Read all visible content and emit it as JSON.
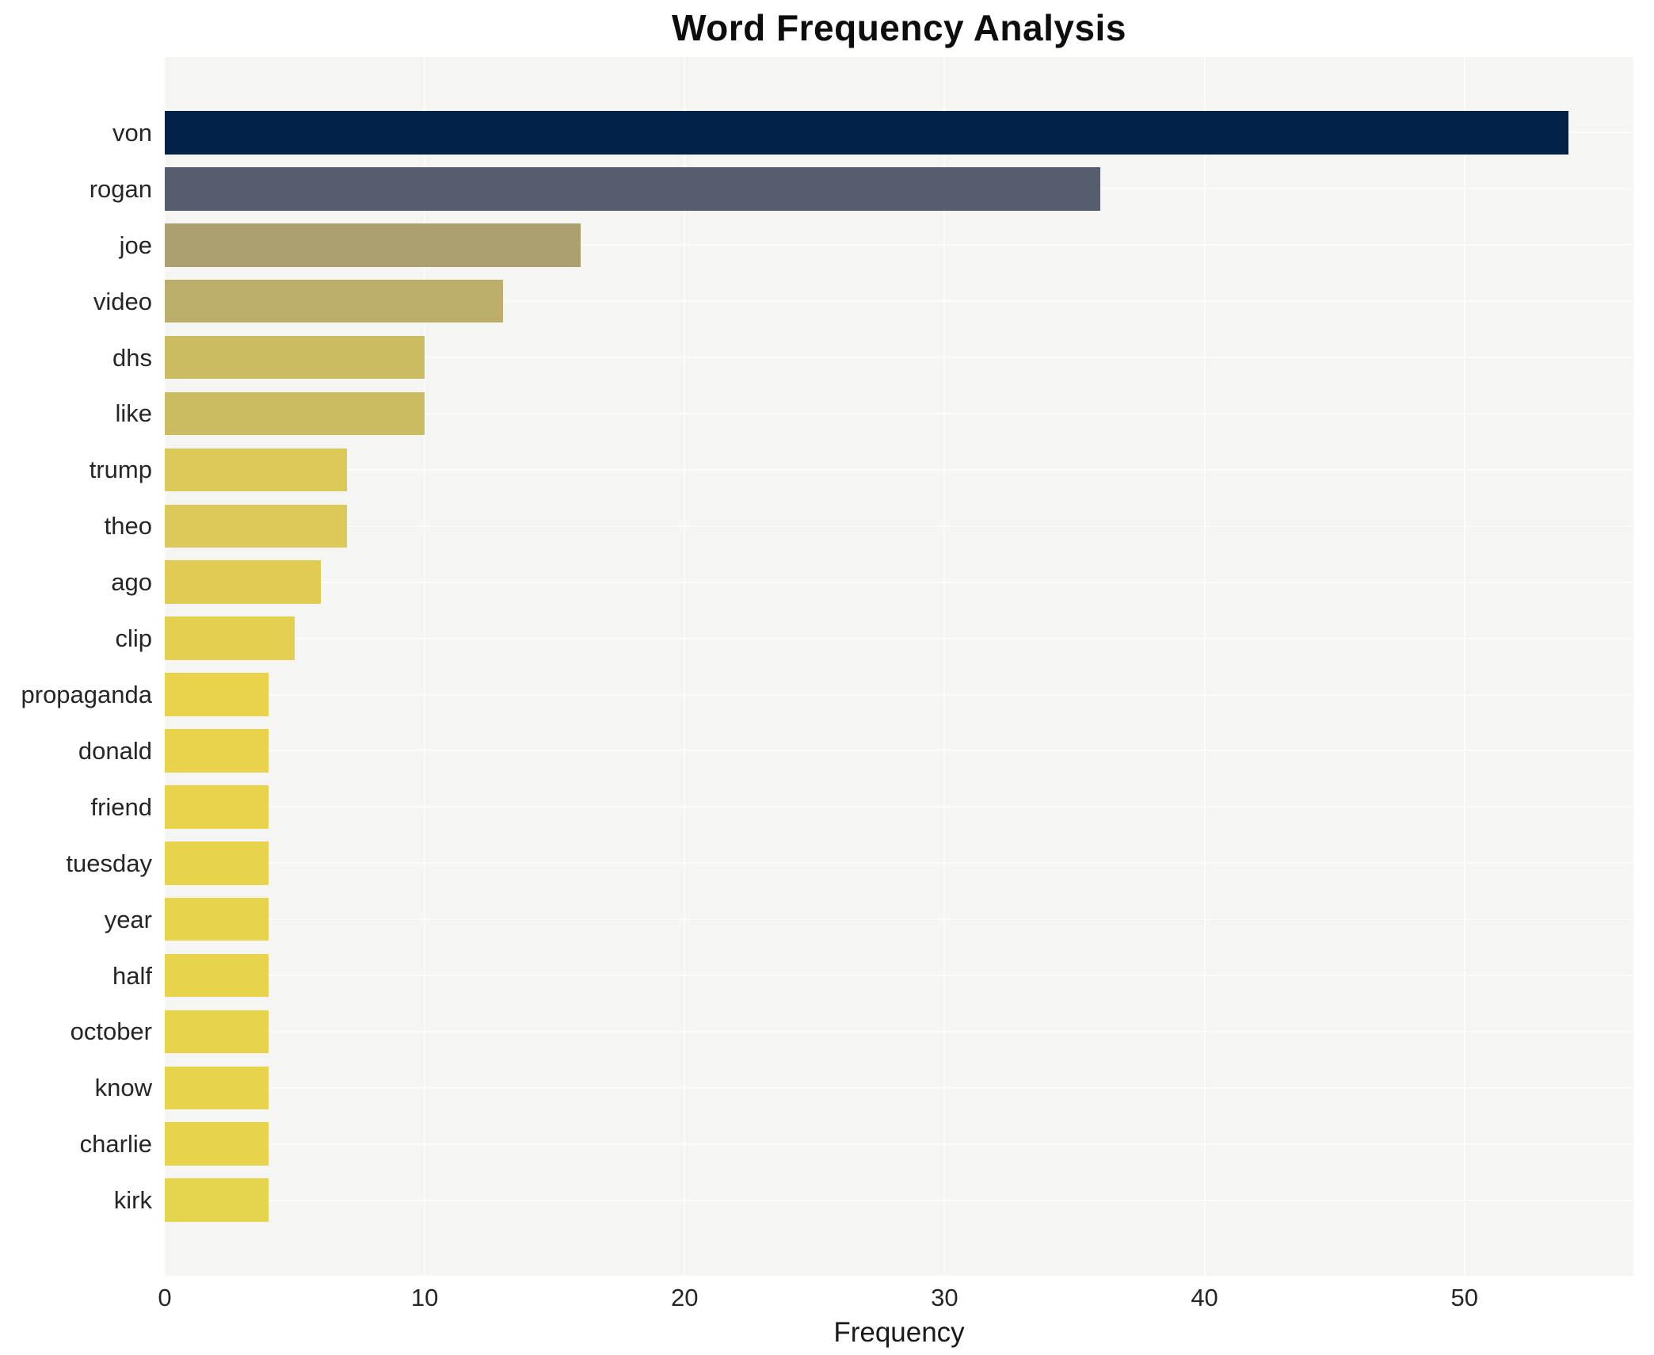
{
  "chart_data": {
    "type": "bar",
    "orientation": "horizontal",
    "title": "Word Frequency Analysis",
    "xlabel": "Frequency",
    "ylabel": "",
    "categories": [
      "von",
      "rogan",
      "joe",
      "video",
      "dhs",
      "like",
      "trump",
      "theo",
      "ago",
      "clip",
      "propaganda",
      "donald",
      "friend",
      "tuesday",
      "year",
      "half",
      "october",
      "know",
      "charlie",
      "kirk"
    ],
    "values": [
      54,
      36,
      16,
      13,
      10,
      10,
      7,
      7,
      6,
      5,
      4,
      4,
      4,
      4,
      4,
      4,
      4,
      4,
      4,
      4
    ],
    "bar_colors": [
      "#02224a",
      "#575c6e",
      "#aba170",
      "#bcae6a",
      "#cbbc61",
      "#cbbc61",
      "#dcc95a",
      "#dcc95a",
      "#e0cc54",
      "#e4d04f",
      "#e9d34c",
      "#e9d34c",
      "#e9d34c",
      "#e8d34d",
      "#e8d34d",
      "#e8d34d",
      "#e7d44d",
      "#e7d44d",
      "#e6d44d",
      "#e5d44d"
    ],
    "xticks": [
      0,
      10,
      20,
      30,
      40,
      50
    ],
    "xlim": [
      0,
      56.5
    ],
    "grid": true,
    "legend": false,
    "plot_background": "#f5f5f4",
    "grid_color": "#fcfcfb",
    "text_color": "#262626",
    "title_color": "#0d0d0d"
  }
}
